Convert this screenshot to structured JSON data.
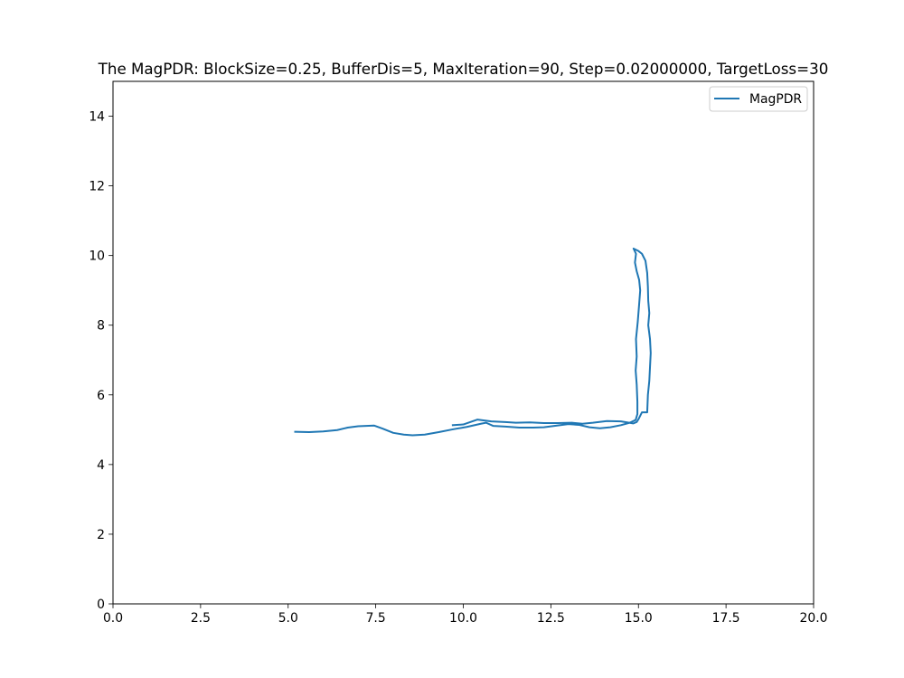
{
  "chart_data": {
    "type": "line",
    "title": "The MagPDR: BlockSize=0.25, BufferDis=5, MaxIteration=90, Step=0.02000000, TargetLoss=30",
    "xlabel": "",
    "ylabel": "",
    "xlim": [
      0,
      20
    ],
    "ylim": [
      0,
      15
    ],
    "x_ticks": [
      0,
      2.5,
      5,
      7.5,
      10,
      12.5,
      15,
      17.5,
      20
    ],
    "x_tick_labels": [
      "0.0",
      "2.5",
      "5.0",
      "7.5",
      "10.0",
      "12.5",
      "15.0",
      "17.5",
      "20.0"
    ],
    "y_ticks": [
      0,
      2,
      4,
      6,
      8,
      10,
      12,
      14
    ],
    "y_tick_labels": [
      "0",
      "2",
      "4",
      "6",
      "8",
      "10",
      "12",
      "14"
    ],
    "grid": false,
    "legend_position": "upper right",
    "series": [
      {
        "name": "MagPDR",
        "color": "#1f77b4",
        "points": [
          [
            5.2,
            4.94
          ],
          [
            5.6,
            4.93
          ],
          [
            6.0,
            4.95
          ],
          [
            6.4,
            4.99
          ],
          [
            6.7,
            5.06
          ],
          [
            7.0,
            5.1
          ],
          [
            7.45,
            5.12
          ],
          [
            7.7,
            5.03
          ],
          [
            8.0,
            4.91
          ],
          [
            8.3,
            4.86
          ],
          [
            8.55,
            4.84
          ],
          [
            8.9,
            4.86
          ],
          [
            9.3,
            4.93
          ],
          [
            9.7,
            5.01
          ],
          [
            10.1,
            5.08
          ],
          [
            10.5,
            5.17
          ],
          [
            10.65,
            5.2
          ],
          [
            10.85,
            5.11
          ],
          [
            11.2,
            5.09
          ],
          [
            11.6,
            5.06
          ],
          [
            12.0,
            5.06
          ],
          [
            12.3,
            5.07
          ],
          [
            12.6,
            5.11
          ],
          [
            13.0,
            5.16
          ],
          [
            13.3,
            5.14
          ],
          [
            13.6,
            5.07
          ],
          [
            13.9,
            5.04
          ],
          [
            14.2,
            5.07
          ],
          [
            14.5,
            5.13
          ],
          [
            14.75,
            5.2
          ],
          [
            14.92,
            5.28
          ],
          [
            14.97,
            5.45
          ],
          [
            14.97,
            5.8
          ],
          [
            14.95,
            6.3
          ],
          [
            14.92,
            6.7
          ],
          [
            14.95,
            7.1
          ],
          [
            14.93,
            7.6
          ],
          [
            14.98,
            8.1
          ],
          [
            15.02,
            8.6
          ],
          [
            15.05,
            9.0
          ],
          [
            15.02,
            9.3
          ],
          [
            14.95,
            9.55
          ],
          [
            14.9,
            9.8
          ],
          [
            14.93,
            10.05
          ],
          [
            14.86,
            10.2
          ],
          [
            15.0,
            10.13
          ],
          [
            15.1,
            10.05
          ],
          [
            15.2,
            9.85
          ],
          [
            15.25,
            9.5
          ],
          [
            15.27,
            9.1
          ],
          [
            15.28,
            8.7
          ],
          [
            15.31,
            8.35
          ],
          [
            15.28,
            8.0
          ],
          [
            15.33,
            7.6
          ],
          [
            15.35,
            7.2
          ],
          [
            15.33,
            6.8
          ],
          [
            15.31,
            6.4
          ],
          [
            15.27,
            6.0
          ],
          [
            15.25,
            5.5
          ],
          [
            15.1,
            5.5
          ],
          [
            15.0,
            5.3
          ],
          [
            14.95,
            5.22
          ],
          [
            14.85,
            5.18
          ],
          [
            14.5,
            5.24
          ],
          [
            14.1,
            5.25
          ],
          [
            13.7,
            5.2
          ],
          [
            13.4,
            5.17
          ],
          [
            13.1,
            5.2
          ],
          [
            12.7,
            5.19
          ],
          [
            12.3,
            5.19
          ],
          [
            11.9,
            5.21
          ],
          [
            11.5,
            5.2
          ],
          [
            11.2,
            5.22
          ],
          [
            10.8,
            5.24
          ],
          [
            10.4,
            5.29
          ],
          [
            10.0,
            5.15
          ],
          [
            9.7,
            5.13
          ]
        ]
      }
    ]
  }
}
